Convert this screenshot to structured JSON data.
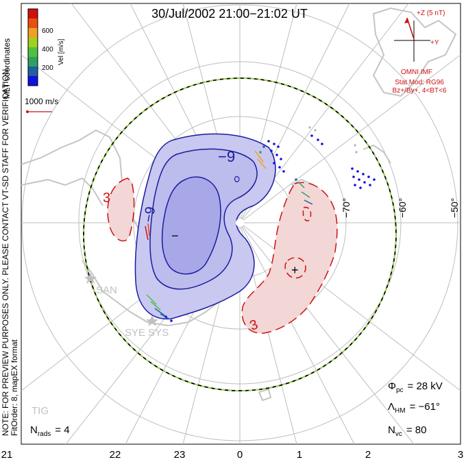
{
  "title": "30/Jul/2002 21:00−21:02 UT",
  "colorbar": {
    "ticks": [
      "600",
      "400",
      "200"
    ],
    "label": "Vel [m/s]",
    "colors": [
      "#d01010",
      "#e85010",
      "#f0a020",
      "#a0d020",
      "#50c040",
      "#30a060",
      "#2060a0",
      "#1010e0"
    ]
  },
  "coord_label": "MLT coordinates",
  "vector_scale_label": "1000 m/s",
  "verification_note": "NOTE: FOR PREVIEW PURPOSES ONLY. PLEASE CONTACT VT-SD STAFF FOR VERIFICATION.",
  "fit_note": "FitOrder: 8, mapEX format",
  "imf": {
    "z_label": "+Z (5 nT)",
    "y_label": "+Y",
    "source_label": "OMNI IMF",
    "model_line1": "Stat Mod: RG96",
    "model_line2": "Bz+/By+, 4<BT<6"
  },
  "lat_labels": [
    "−70°",
    "−60°",
    "−50°"
  ],
  "contours": {
    "neg_labels": [
      "−9",
      "−9",
      "−"
    ],
    "pos_labels": [
      "3",
      "3",
      "+"
    ],
    "neg_fill": "#c8c8f0",
    "neg_inner_fill": "#a8a8e8",
    "pos_fill": "#f3d6d6",
    "neg_line": "#1a1aa0",
    "pos_line": "#cc1111"
  },
  "sites": [
    "SAN",
    "SYE SYS",
    "TIG"
  ],
  "stats": {
    "phi_label": "Φ",
    "phi_sub": "pc",
    "phi_value": "= 28 kV",
    "lambda_label": "Λ",
    "lambda_sub": "HM",
    "lambda_value": "= −61°",
    "nvc_label": "N",
    "nvc_sub": "vc",
    "nvc_value": "= 80",
    "nrads_label": "N",
    "nrads_sub": "rads",
    "nrads_value": "= 4"
  },
  "mlt_axis": [
    "21",
    "22",
    "23",
    "0",
    "1",
    "2",
    "3"
  ]
}
